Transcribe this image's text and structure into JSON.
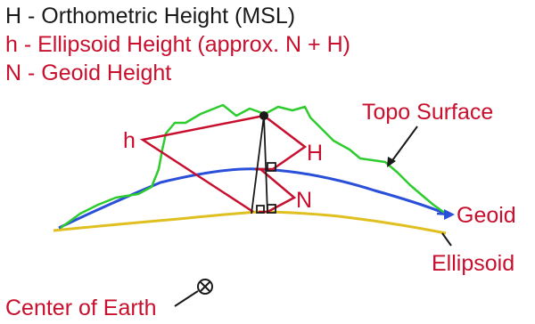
{
  "legend": {
    "line1": "H - Orthometric Height (MSL)",
    "line2": "h - Ellipsoid Height (approx. N + H)",
    "line3": "N - Geoid Height"
  },
  "labels": {
    "topo": "Topo Surface",
    "geoid": "Geoid",
    "ellipsoid": "Ellipsoid",
    "center": "Center of Earth",
    "h": "h",
    "H": "H",
    "N": "N"
  },
  "colors": {
    "red": "#c8102e",
    "topo": "#2ecc2e",
    "geoid": "#2a4fd8",
    "ellipsoid": "#e0c020",
    "dark": "#1a1a1a"
  }
}
